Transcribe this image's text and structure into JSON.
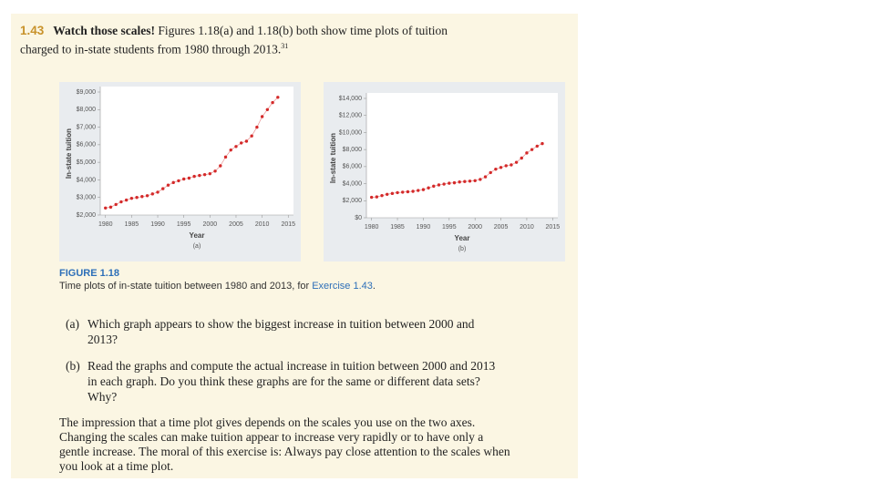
{
  "exercise": {
    "number": "1.43",
    "title": "Watch those scales!",
    "text": "Figures 1.18(a) and 1.18(b) both show time plots of tuition charged to in-state students from 1980 through 2013.",
    "footnote": "31"
  },
  "chart_data": [
    {
      "type": "line",
      "y_label": "In-state tuition",
      "x_label": "Year",
      "subtitle": "(a)",
      "color": "#d42a2a",
      "x": [
        1980,
        1981,
        1982,
        1983,
        1984,
        1985,
        1986,
        1987,
        1988,
        1989,
        1990,
        1991,
        1992,
        1993,
        1994,
        1995,
        1996,
        1997,
        1998,
        1999,
        2000,
        2001,
        2002,
        2003,
        2004,
        2005,
        2006,
        2007,
        2008,
        2009,
        2010,
        2011,
        2012,
        2013
      ],
      "values": [
        2400,
        2450,
        2600,
        2750,
        2850,
        2950,
        3000,
        3050,
        3100,
        3200,
        3300,
        3500,
        3700,
        3850,
        3950,
        4050,
        4100,
        4200,
        4250,
        4300,
        4350,
        4500,
        4800,
        5300,
        5700,
        5900,
        6100,
        6200,
        6500,
        7000,
        7600,
        8000,
        8400,
        8700
      ],
      "xlim": [
        1979,
        2016
      ],
      "xticks": [
        1980,
        1985,
        1990,
        1995,
        2000,
        2005,
        2010,
        2015
      ],
      "ylim": [
        2000,
        9000
      ],
      "yticks": [
        {
          "value": 2000,
          "label": "$2,000"
        },
        {
          "value": 3000,
          "label": "$3,000"
        },
        {
          "value": 4000,
          "label": "$4,000"
        },
        {
          "value": 5000,
          "label": "$5,000"
        },
        {
          "value": 6000,
          "label": "$6,000"
        },
        {
          "value": 7000,
          "label": "$7,000"
        },
        {
          "value": 8000,
          "label": "$8,000"
        },
        {
          "value": 9000,
          "label": "$9,000"
        }
      ]
    },
    {
      "type": "line",
      "y_label": "In-state tuition",
      "x_label": "Year",
      "subtitle": "(b)",
      "color": "#d42a2a",
      "x": [
        1980,
        1981,
        1982,
        1983,
        1984,
        1985,
        1986,
        1987,
        1988,
        1989,
        1990,
        1991,
        1992,
        1993,
        1994,
        1995,
        1996,
        1997,
        1998,
        1999,
        2000,
        2001,
        2002,
        2003,
        2004,
        2005,
        2006,
        2007,
        2008,
        2009,
        2010,
        2011,
        2012,
        2013
      ],
      "values": [
        2400,
        2450,
        2600,
        2750,
        2850,
        2950,
        3000,
        3050,
        3100,
        3200,
        3300,
        3500,
        3700,
        3850,
        3950,
        4050,
        4100,
        4200,
        4250,
        4300,
        4350,
        4500,
        4800,
        5300,
        5700,
        5900,
        6100,
        6200,
        6500,
        7000,
        7600,
        8000,
        8400,
        8700
      ],
      "xlim": [
        1979,
        2016
      ],
      "xticks": [
        1980,
        1985,
        1990,
        1995,
        2000,
        2005,
        2010,
        2015
      ],
      "ylim": [
        0,
        14000
      ],
      "yticks": [
        {
          "value": 0,
          "label": "$0"
        },
        {
          "value": 2000,
          "label": "$2,000"
        },
        {
          "value": 4000,
          "label": "$4,000"
        },
        {
          "value": 6000,
          "label": "$6,000"
        },
        {
          "value": 8000,
          "label": "$8,000"
        },
        {
          "value": 10000,
          "label": "$10,000"
        },
        {
          "value": 12000,
          "label": "$12,000"
        },
        {
          "value": 14000,
          "label": "$14,000"
        }
      ]
    }
  ],
  "figure": {
    "label": "FIGURE 1.18",
    "caption": "Time plots of in-state tuition between 1980 and 2013, for",
    "reference": "Exercise 1.43",
    "end": "."
  },
  "questions": [
    {
      "label": "(a)",
      "text": "Which graph appears to show the biggest increase in tuition between 2000 and 2013?"
    },
    {
      "label": "(b)",
      "text": "Read the graphs and compute the actual increase in tuition between 2000 and 2013 in each graph. Do you think these graphs are for the same or different data sets? Why?"
    }
  ],
  "paragraph": "The impression that a time plot gives depends on the scales you use on the two axes. Changing the scales can make tuition appear to increase very rapidly or to have only a gentle increase. The moral of this exercise is: Always pay close attention to the scales when you look at a time plot."
}
